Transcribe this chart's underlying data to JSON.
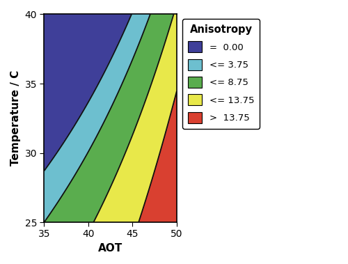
{
  "xlabel": "AOT",
  "ylabel": "Temperature / C",
  "xlim": [
    35,
    50
  ],
  "ylim": [
    25,
    40
  ],
  "xticks": [
    35,
    40,
    45,
    50
  ],
  "yticks": [
    25,
    30,
    35,
    40
  ],
  "legend_title": "Anisotropy",
  "legend_labels": [
    "=  0.00",
    "<= 3.75",
    "<= 8.75",
    "<= 13.75",
    ">  13.75"
  ],
  "colors": [
    "#3f3f99",
    "#6dbfcf",
    "#5aad4e",
    "#e8e84a",
    "#d94030"
  ],
  "levels": [
    0.0,
    0.001,
    3.75,
    8.75,
    13.75,
    30.0
  ],
  "figsize": [
    5.0,
    3.79
  ],
  "dpi": 100,
  "bg_color": "#ffffff",
  "contour_color": "#111111",
  "contour_lw": 1.3,
  "c1": 0.0,
  "c2": 0.0,
  "c3": 0.08,
  "c4": 0.06,
  "c5": 0.065,
  "c6": 0.0
}
